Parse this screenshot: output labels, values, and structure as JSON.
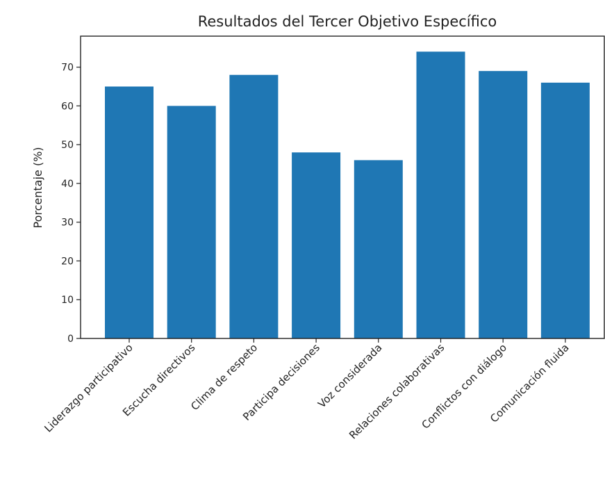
{
  "chart_data": {
    "type": "bar",
    "title": "Resultados del Tercer Objetivo Específico",
    "xlabel": "",
    "ylabel": "Porcentaje (%)",
    "ylim": [
      0,
      78
    ],
    "yticks": [
      0,
      10,
      20,
      30,
      40,
      50,
      60,
      70
    ],
    "grid": false,
    "bar_color": "#1f77b4",
    "categories": [
      "Liderazgo participativo",
      "Escucha directivos",
      "Clima de respeto",
      "Participa decisiones",
      "Voz considerada",
      "Relaciones colaborativas",
      "Conflictos con diálogo",
      "Comunicación fluida"
    ],
    "values": [
      65,
      60,
      68,
      48,
      46,
      74,
      69,
      66
    ]
  }
}
